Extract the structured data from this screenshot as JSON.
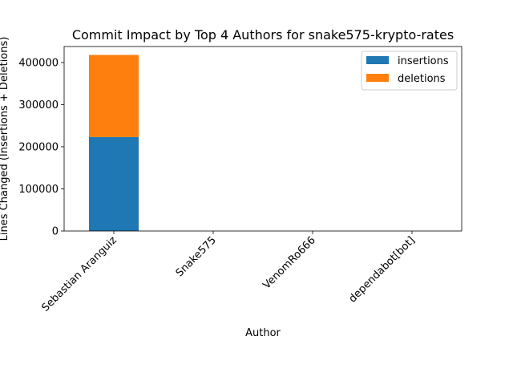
{
  "chart_data": {
    "type": "bar",
    "stacked": true,
    "title": "Commit Impact by Top 4 Authors for snake575-krypto-rates",
    "xlabel": "Author",
    "ylabel": "Lines Changed (Insertions + Deletions)",
    "categories": [
      "Sebastian Aranguiz",
      "Snake575",
      "VenomRo666",
      "dependabot[bot]"
    ],
    "series": [
      {
        "name": "insertions",
        "color": "#1f77b4",
        "values": [
          223000,
          0,
          0,
          0
        ]
      },
      {
        "name": "deletions",
        "color": "#ff7f0e",
        "values": [
          195000,
          0,
          0,
          0
        ]
      }
    ],
    "ylim": [
      0,
      438000
    ],
    "yticks": [
      0,
      100000,
      200000,
      300000,
      400000
    ],
    "ytick_labels": [
      "0",
      "100000",
      "200000",
      "300000",
      "400000"
    ],
    "grid": false,
    "legend_position": "top-right"
  }
}
